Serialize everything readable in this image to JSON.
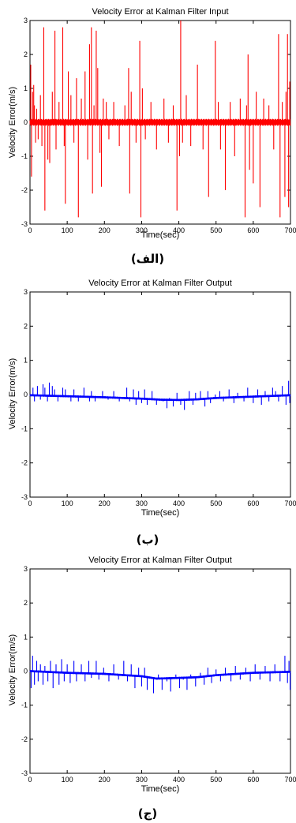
{
  "colors": {
    "input_trace": "#ff0000",
    "output_trace": "#0000ff",
    "axes": "#000000"
  },
  "chart_data": [
    {
      "type": "line",
      "title": "Velocity Error at Kalman Filter Input",
      "xlabel": "Time(sec)",
      "ylabel": "Velocity Error(m/s)",
      "xlim": [
        0,
        700
      ],
      "ylim": [
        -3,
        3
      ],
      "xticks": [
        0,
        100,
        200,
        300,
        400,
        500,
        600,
        700
      ],
      "yticks": [
        -3,
        -2,
        -1,
        0,
        1,
        2,
        3
      ],
      "grid": false,
      "caption": "(الف)",
      "color": "#ff0000",
      "baseline": [
        [
          0,
          0.0
        ],
        [
          700,
          0.0
        ]
      ],
      "noise_band": 0.1,
      "spikes": [
        [
          2,
          1.7
        ],
        [
          4,
          -1.6
        ],
        [
          7,
          0.9
        ],
        [
          10,
          1.1
        ],
        [
          12,
          0.5
        ],
        [
          15,
          -0.6
        ],
        [
          18,
          0.4
        ],
        [
          22,
          -0.5
        ],
        [
          28,
          0.8
        ],
        [
          32,
          -0.7
        ],
        [
          37,
          2.8
        ],
        [
          40,
          -2.6
        ],
        [
          48,
          -1.1
        ],
        [
          53,
          -1.2
        ],
        [
          60,
          0.9
        ],
        [
          67,
          2.7
        ],
        [
          70,
          -0.8
        ],
        [
          78,
          0.6
        ],
        [
          88,
          2.8
        ],
        [
          92,
          -0.7
        ],
        [
          95,
          -2.4
        ],
        [
          103,
          1.5
        ],
        [
          110,
          0.8
        ],
        [
          118,
          -0.6
        ],
        [
          125,
          1.3
        ],
        [
          130,
          -2.8
        ],
        [
          138,
          0.7
        ],
        [
          148,
          1.5
        ],
        [
          155,
          -1.1
        ],
        [
          160,
          2.3
        ],
        [
          165,
          2.8
        ],
        [
          168,
          -2.1
        ],
        [
          172,
          0.5
        ],
        [
          178,
          2.7
        ],
        [
          182,
          1.6
        ],
        [
          188,
          -0.9
        ],
        [
          192,
          -1.9
        ],
        [
          197,
          0.7
        ],
        [
          205,
          0.6
        ],
        [
          212,
          -0.5
        ],
        [
          225,
          0.6
        ],
        [
          240,
          -0.7
        ],
        [
          255,
          0.5
        ],
        [
          265,
          1.6
        ],
        [
          268,
          -2.1
        ],
        [
          272,
          0.9
        ],
        [
          285,
          -0.6
        ],
        [
          295,
          2.4
        ],
        [
          298,
          -2.8
        ],
        [
          302,
          1.0
        ],
        [
          310,
          -0.5
        ],
        [
          325,
          0.6
        ],
        [
          340,
          -0.8
        ],
        [
          360,
          0.7
        ],
        [
          372,
          -0.6
        ],
        [
          385,
          0.5
        ],
        [
          395,
          -2.6
        ],
        [
          402,
          -1.0
        ],
        [
          405,
          3.0
        ],
        [
          410,
          -0.6
        ],
        [
          420,
          0.8
        ],
        [
          432,
          -0.7
        ],
        [
          450,
          1.7
        ],
        [
          465,
          -0.8
        ],
        [
          480,
          -2.2
        ],
        [
          498,
          2.4
        ],
        [
          506,
          0.6
        ],
        [
          512,
          -0.8
        ],
        [
          525,
          -2.0
        ],
        [
          538,
          0.6
        ],
        [
          550,
          -1.0
        ],
        [
          565,
          0.7
        ],
        [
          578,
          -2.8
        ],
        [
          582,
          0.5
        ],
        [
          586,
          2.0
        ],
        [
          590,
          -1.4
        ],
        [
          600,
          -1.8
        ],
        [
          608,
          0.9
        ],
        [
          618,
          -2.5
        ],
        [
          628,
          0.7
        ],
        [
          642,
          0.5
        ],
        [
          655,
          -0.8
        ],
        [
          668,
          2.6
        ],
        [
          672,
          -2.8
        ],
        [
          678,
          0.6
        ],
        [
          685,
          -2.2
        ],
        [
          688,
          0.9
        ],
        [
          692,
          2.6
        ],
        [
          695,
          -2.5
        ],
        [
          698,
          1.2
        ]
      ]
    },
    {
      "type": "line",
      "title": "Velocity Error at Kalman Filter Output",
      "xlabel": "Time(sec)",
      "ylabel": "Velocity Error(m/s)",
      "xlim": [
        0,
        700
      ],
      "ylim": [
        -3,
        3
      ],
      "xticks": [
        0,
        100,
        200,
        300,
        400,
        500,
        600,
        700
      ],
      "yticks": [
        -3,
        -2,
        -1,
        0,
        1,
        2,
        3
      ],
      "grid": false,
      "caption": "(ب)",
      "color": "#0000ff",
      "baseline": [
        [
          0,
          -0.02
        ],
        [
          100,
          -0.05
        ],
        [
          200,
          -0.08
        ],
        [
          300,
          -0.12
        ],
        [
          350,
          -0.15
        ],
        [
          400,
          -0.16
        ],
        [
          450,
          -0.14
        ],
        [
          500,
          -0.1
        ],
        [
          600,
          -0.06
        ],
        [
          700,
          -0.02
        ]
      ],
      "noise_band": 0.03,
      "spikes": [
        [
          8,
          0.2
        ],
        [
          12,
          -0.2
        ],
        [
          20,
          0.25
        ],
        [
          28,
          -0.15
        ],
        [
          35,
          0.3
        ],
        [
          40,
          0.2
        ],
        [
          47,
          -0.2
        ],
        [
          52,
          0.35
        ],
        [
          60,
          0.25
        ],
        [
          66,
          0.15
        ],
        [
          75,
          -0.2
        ],
        [
          88,
          0.2
        ],
        [
          95,
          0.15
        ],
        [
          110,
          -0.2
        ],
        [
          118,
          0.15
        ],
        [
          130,
          -0.2
        ],
        [
          145,
          0.2
        ],
        [
          160,
          -0.2
        ],
        [
          165,
          0.1
        ],
        [
          175,
          -0.2
        ],
        [
          195,
          0.1
        ],
        [
          210,
          -0.15
        ],
        [
          225,
          0.1
        ],
        [
          240,
          -0.2
        ],
        [
          260,
          0.2
        ],
        [
          268,
          -0.2
        ],
        [
          278,
          0.15
        ],
        [
          285,
          -0.3
        ],
        [
          292,
          0.1
        ],
        [
          300,
          -0.25
        ],
        [
          308,
          0.15
        ],
        [
          315,
          -0.3
        ],
        [
          328,
          0.1
        ],
        [
          340,
          -0.3
        ],
        [
          350,
          -0.15
        ],
        [
          358,
          -0.2
        ],
        [
          368,
          -0.4
        ],
        [
          375,
          -0.1
        ],
        [
          385,
          -0.35
        ],
        [
          395,
          0.05
        ],
        [
          405,
          -0.3
        ],
        [
          415,
          -0.45
        ],
        [
          428,
          0.1
        ],
        [
          438,
          -0.3
        ],
        [
          445,
          0.05
        ],
        [
          458,
          0.1
        ],
        [
          470,
          -0.35
        ],
        [
          478,
          0.1
        ],
        [
          485,
          -0.25
        ],
        [
          498,
          0.0
        ],
        [
          510,
          0.1
        ],
        [
          520,
          -0.2
        ],
        [
          535,
          0.15
        ],
        [
          548,
          -0.25
        ],
        [
          558,
          0.05
        ],
        [
          575,
          -0.2
        ],
        [
          585,
          0.2
        ],
        [
          600,
          -0.25
        ],
        [
          612,
          0.15
        ],
        [
          622,
          -0.3
        ],
        [
          632,
          0.1
        ],
        [
          642,
          -0.2
        ],
        [
          652,
          0.2
        ],
        [
          660,
          0.1
        ],
        [
          668,
          -0.2
        ],
        [
          678,
          0.25
        ],
        [
          688,
          -0.3
        ],
        [
          695,
          0.4
        ],
        [
          698,
          -0.25
        ]
      ]
    },
    {
      "type": "line",
      "title": "Velocity Error at Kalman Filter Output",
      "xlabel": "Time(sec)",
      "ylabel": "Velocity Error(m/s)",
      "xlim": [
        0,
        700
      ],
      "ylim": [
        -3,
        3
      ],
      "xticks": [
        0,
        100,
        200,
        300,
        400,
        500,
        600,
        700
      ],
      "yticks": [
        -3,
        -2,
        -1,
        0,
        1,
        2,
        3
      ],
      "grid": false,
      "caption": "(ج)",
      "color": "#0000ff",
      "baseline": [
        [
          0,
          0.0
        ],
        [
          100,
          -0.05
        ],
        [
          200,
          -0.08
        ],
        [
          300,
          -0.15
        ],
        [
          340,
          -0.22
        ],
        [
          400,
          -0.2
        ],
        [
          450,
          -0.18
        ],
        [
          500,
          -0.12
        ],
        [
          600,
          -0.05
        ],
        [
          700,
          -0.02
        ]
      ],
      "noise_band": 0.03,
      "spikes": [
        [
          3,
          -0.5
        ],
        [
          7,
          0.45
        ],
        [
          12,
          -0.4
        ],
        [
          18,
          0.3
        ],
        [
          22,
          -0.3
        ],
        [
          28,
          0.2
        ],
        [
          35,
          -0.4
        ],
        [
          40,
          0.15
        ],
        [
          48,
          -0.3
        ],
        [
          55,
          0.3
        ],
        [
          62,
          -0.5
        ],
        [
          70,
          0.2
        ],
        [
          78,
          -0.4
        ],
        [
          85,
          0.35
        ],
        [
          92,
          -0.3
        ],
        [
          100,
          0.2
        ],
        [
          108,
          -0.35
        ],
        [
          118,
          0.3
        ],
        [
          125,
          -0.3
        ],
        [
          138,
          0.2
        ],
        [
          148,
          -0.3
        ],
        [
          158,
          0.3
        ],
        [
          165,
          -0.2
        ],
        [
          178,
          0.3
        ],
        [
          185,
          -0.25
        ],
        [
          198,
          0.1
        ],
        [
          212,
          -0.3
        ],
        [
          225,
          0.2
        ],
        [
          238,
          -0.25
        ],
        [
          252,
          0.3
        ],
        [
          262,
          -0.3
        ],
        [
          272,
          0.2
        ],
        [
          282,
          -0.5
        ],
        [
          292,
          0.1
        ],
        [
          300,
          -0.45
        ],
        [
          308,
          0.1
        ],
        [
          315,
          -0.55
        ],
        [
          325,
          -0.2
        ],
        [
          332,
          -0.65
        ],
        [
          345,
          -0.1
        ],
        [
          355,
          -0.55
        ],
        [
          368,
          -0.3
        ],
        [
          378,
          -0.6
        ],
        [
          392,
          -0.1
        ],
        [
          402,
          -0.5
        ],
        [
          412,
          -0.25
        ],
        [
          422,
          -0.55
        ],
        [
          432,
          -0.1
        ],
        [
          445,
          -0.45
        ],
        [
          458,
          -0.05
        ],
        [
          468,
          -0.4
        ],
        [
          478,
          0.1
        ],
        [
          488,
          -0.35
        ],
        [
          500,
          0.05
        ],
        [
          512,
          -0.3
        ],
        [
          525,
          0.1
        ],
        [
          540,
          -0.3
        ],
        [
          552,
          0.15
        ],
        [
          565,
          -0.25
        ],
        [
          580,
          0.1
        ],
        [
          592,
          -0.3
        ],
        [
          605,
          0.2
        ],
        [
          618,
          -0.25
        ],
        [
          632,
          0.15
        ],
        [
          645,
          -0.3
        ],
        [
          658,
          0.2
        ],
        [
          672,
          -0.3
        ],
        [
          685,
          0.45
        ],
        [
          692,
          -0.35
        ],
        [
          696,
          0.3
        ],
        [
          699,
          -0.55
        ]
      ]
    }
  ]
}
